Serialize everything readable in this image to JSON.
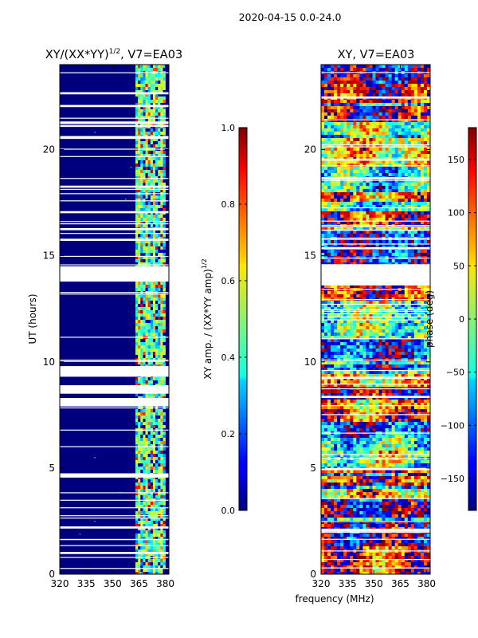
{
  "suptitle": "2020-04-15 0.0-24.0",
  "xlabel_shared": "frequency (MHz)",
  "chart_data": [
    {
      "type": "heatmap",
      "title_main": "XY/(XX*YY)",
      "title_sup": "1/2",
      "title_rest": ", V7=EA03",
      "ylabel": "UT (hours)",
      "xlim": [
        320,
        382
      ],
      "ylim": [
        0,
        24
      ],
      "xticks": [
        "320",
        "335",
        "350",
        "365",
        "380"
      ],
      "xtick_values": [
        320,
        335,
        350,
        365,
        380
      ],
      "yticks": [
        "0",
        "5",
        "10",
        "15",
        "20"
      ],
      "ytick_values": [
        0,
        5,
        10,
        15,
        20
      ],
      "signal_band_mhz": [
        363,
        380
      ],
      "flagged_gaps_hours": [
        [
          0.95,
          1.05
        ],
        [
          2.15,
          2.25
        ],
        [
          4.55,
          4.75
        ],
        [
          7.9,
          8.3
        ],
        [
          8.5,
          8.9
        ],
        [
          9.3,
          9.8
        ],
        [
          13.8,
          13.9
        ],
        [
          14.5,
          13.8
        ],
        [
          15.7,
          15.8
        ],
        [
          16.2,
          16.3
        ],
        [
          17.0,
          17.1
        ],
        [
          18.2,
          18.3
        ],
        [
          20.5,
          20.6
        ],
        [
          21.2,
          21.3
        ],
        [
          22.0,
          22.1
        ],
        [
          22.6,
          22.7
        ]
      ],
      "colorbar": {
        "label_main": "XY amp. / (XX*YY amp)",
        "label_sup": "1/2",
        "range": [
          0.0,
          1.0
        ],
        "ticks": [
          "0.0",
          "0.2",
          "0.4",
          "0.6",
          "0.8",
          "1.0"
        ],
        "tick_values": [
          0.0,
          0.2,
          0.4,
          0.6,
          0.8,
          1.0
        ]
      }
    },
    {
      "type": "heatmap",
      "title": "XY, V7=EA03",
      "xlim": [
        320,
        382
      ],
      "ylim": [
        0,
        24
      ],
      "xticks": [
        "320",
        "335",
        "350",
        "365",
        "380"
      ],
      "xtick_values": [
        320,
        335,
        350,
        365,
        380
      ],
      "yticks": [
        "0",
        "5",
        "10",
        "15",
        "20"
      ],
      "ytick_values": [
        0,
        5,
        10,
        15,
        20
      ],
      "flagged_gaps_hours": [
        [
          13.6,
          14.6
        ],
        [
          9.2,
          9.3
        ],
        [
          8.3,
          8.4
        ],
        [
          4.9,
          5.0
        ],
        [
          2.0,
          2.1
        ],
        [
          15.3,
          15.4
        ],
        [
          18.6,
          18.7
        ],
        [
          22.4,
          22.5
        ]
      ],
      "colorbar": {
        "label": "phase (deg)",
        "range": [
          -180,
          180
        ],
        "ticks": [
          "−150",
          "−100",
          "−50",
          "0",
          "50",
          "100",
          "150"
        ],
        "tick_values": [
          -150,
          -100,
          -50,
          0,
          50,
          100,
          150
        ]
      }
    }
  ]
}
